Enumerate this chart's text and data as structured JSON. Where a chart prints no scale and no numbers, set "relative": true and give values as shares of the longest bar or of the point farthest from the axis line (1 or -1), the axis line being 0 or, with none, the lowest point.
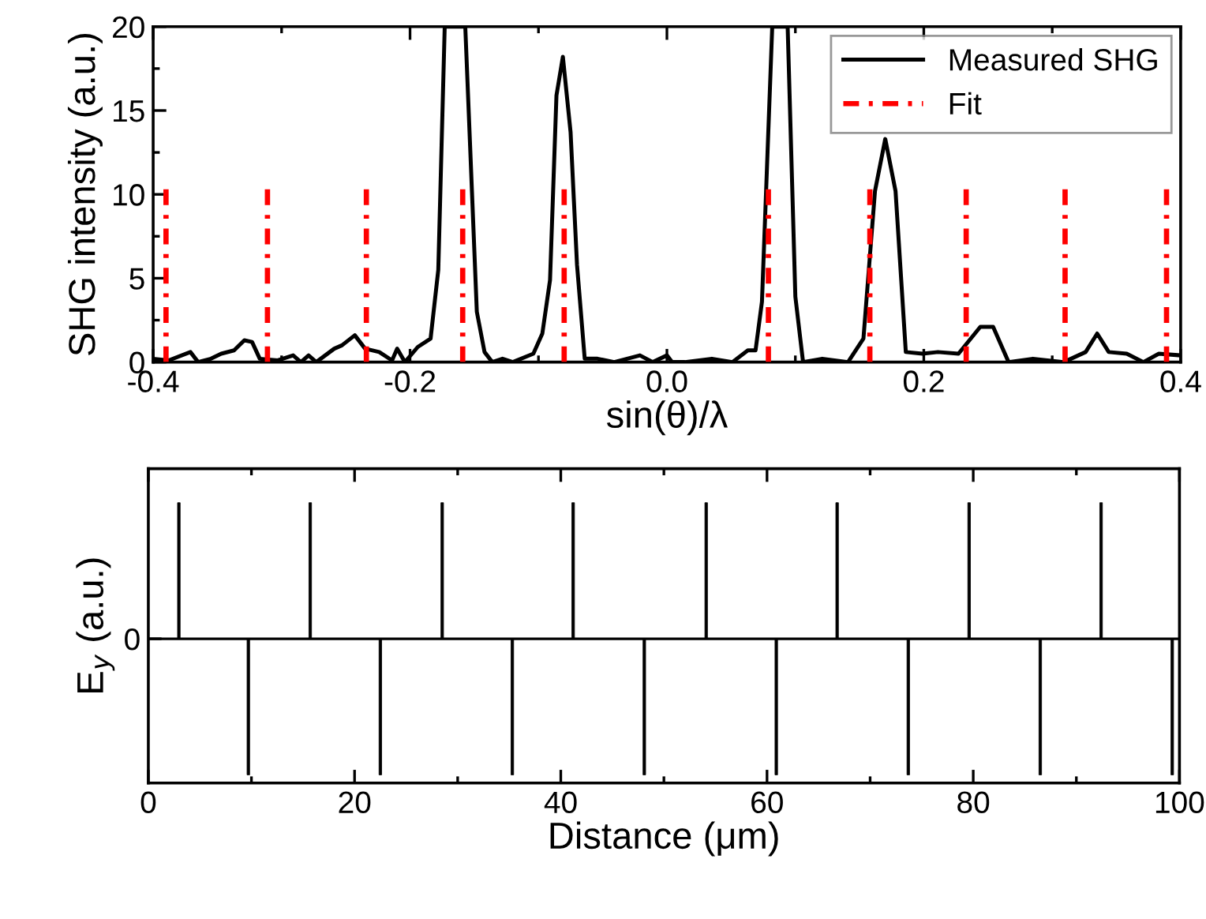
{
  "chart_data": [
    {
      "type": "line",
      "xlabel": "sin(θ)/λ",
      "ylabel": "SHG intensity (a.u.)",
      "xlim": [
        -0.4,
        0.4
      ],
      "xticks": [
        -0.4,
        -0.2,
        {
          "value": 0,
          "label": "0.0"
        },
        0.2,
        0.4
      ],
      "ylim": [
        0,
        20
      ],
      "yticks": [
        0,
        5,
        10,
        15,
        20
      ],
      "legend": "top right",
      "grid": false,
      "series": [
        {
          "name": "Measured SHG",
          "color": "#000000",
          "line_style": "solid",
          "x": [
            -0.4,
            -0.388,
            -0.371,
            -0.365,
            -0.355,
            -0.347,
            -0.337,
            -0.329,
            -0.323,
            -0.317,
            -0.303,
            -0.291,
            -0.285,
            -0.279,
            -0.273,
            -0.259,
            -0.253,
            -0.243,
            -0.235,
            -0.224,
            -0.214,
            -0.21,
            -0.204,
            -0.194,
            -0.184,
            -0.178,
            -0.173,
            -0.157,
            -0.148,
            -0.142,
            -0.136,
            -0.128,
            -0.12,
            -0.104,
            -0.097,
            -0.091,
            -0.086,
            -0.081,
            -0.075,
            -0.07,
            -0.064,
            -0.054,
            -0.041,
            -0.021,
            -0.011,
            0.0,
            0.004,
            0.014,
            0.035,
            0.051,
            0.063,
            0.069,
            0.074,
            0.082,
            0.094,
            0.1,
            0.106,
            0.121,
            0.141,
            0.153,
            0.162,
            0.17,
            0.178,
            0.186,
            0.199,
            0.211,
            0.227,
            0.244,
            0.254,
            0.266,
            0.285,
            0.309,
            0.326,
            0.335,
            0.344,
            0.358,
            0.371,
            0.383,
            0.4
          ],
          "values": [
            0.2,
            0.1,
            0.6,
            0,
            0.2,
            0.5,
            0.7,
            1.3,
            1.2,
            0.2,
            0.1,
            0.4,
            0,
            0.4,
            0,
            0.8,
            1.0,
            1.6,
            0.8,
            0.6,
            0.1,
            0.8,
            0,
            0.9,
            1.4,
            5.5,
            20,
            20,
            3.0,
            0.6,
            0,
            0.2,
            0,
            0.5,
            1.7,
            4.9,
            15.9,
            18.2,
            13.7,
            5.8,
            0.2,
            0.2,
            0,
            0.4,
            0,
            0.4,
            0,
            0,
            0.2,
            0,
            0.7,
            0.7,
            3.6,
            20,
            20,
            3.9,
            0,
            0.2,
            0,
            1.4,
            10.2,
            13.3,
            10.2,
            0.6,
            0.5,
            0.6,
            0.5,
            2.1,
            2.1,
            0,
            0.2,
            0,
            0.6,
            1.7,
            0.6,
            0.5,
            0,
            0.5,
            0.4
          ]
        },
        {
          "name": "Fit",
          "color": "#ff0000",
          "line_style": "dashdot",
          "x": [
            -0.39,
            -0.39,
            null,
            -0.311,
            -0.311,
            null,
            -0.234,
            -0.234,
            null,
            -0.159,
            -0.159,
            null,
            -0.08,
            -0.08,
            null,
            0.079,
            0.079,
            null,
            0.158,
            0.158,
            null,
            0.233,
            0.233,
            null,
            0.31,
            0.31,
            null,
            0.389,
            0.389
          ],
          "values": [
            0,
            10.3,
            null,
            0,
            10.3,
            null,
            0,
            10.3,
            null,
            0,
            10.3,
            null,
            0,
            10.3,
            null,
            0,
            10.3,
            null,
            0,
            10.3,
            null,
            0,
            10.3,
            null,
            0,
            10.3,
            null,
            0,
            10.3
          ]
        }
      ]
    },
    {
      "type": "bar",
      "relative": true,
      "xlabel": "Distance (μm)",
      "ylabel": "E$_{y}$ (a.u.)",
      "xlim": [
        0,
        100
      ],
      "xticks": [
        0,
        20,
        40,
        60,
        80,
        100
      ],
      "grid": false,
      "legend": false,
      "ref_lines": [
        {
          "axis": "y",
          "value": 0,
          "label": "0",
          "color": "#000000"
        }
      ],
      "series": [
        {
          "color": "#000000",
          "x": [
            2.96,
            9.7,
            15.7,
            22.5,
            28.5,
            35.3,
            41.2,
            48.1,
            54.1,
            60.9,
            66.8,
            73.7,
            79.6,
            86.5,
            92.4,
            99.3
          ],
          "values": [
            1,
            -1,
            1,
            -1,
            1,
            -1,
            1,
            -1,
            1,
            -1,
            1,
            -1,
            1,
            -1,
            1,
            -1
          ]
        }
      ]
    }
  ]
}
